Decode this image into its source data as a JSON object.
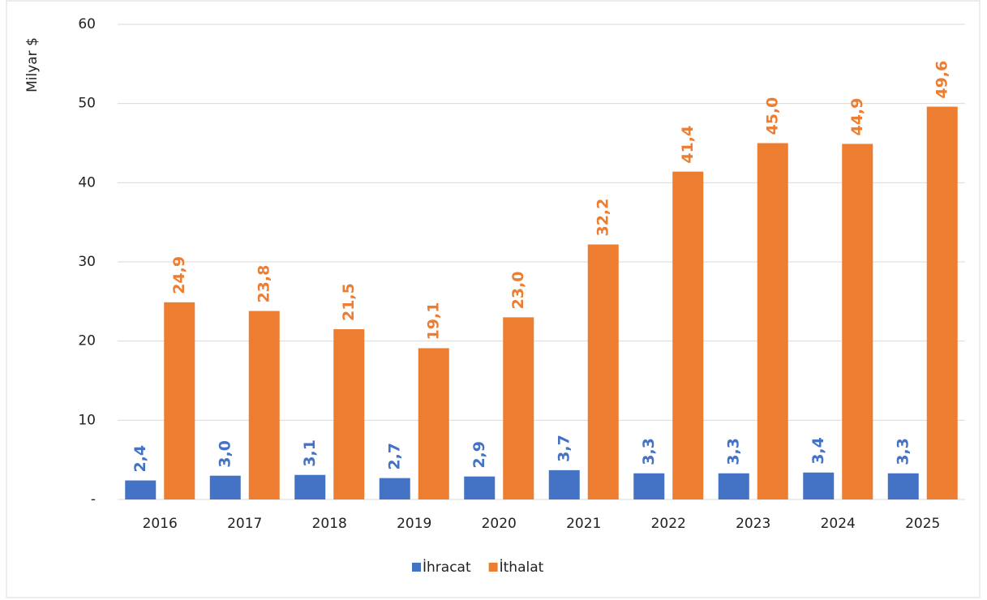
{
  "chart_data": {
    "type": "bar",
    "y_label": "Milyar $",
    "categories": [
      "2016",
      "2017",
      "2018",
      "2019",
      "2020",
      "2021",
      "2022",
      "2023",
      "2024",
      "2025"
    ],
    "series": [
      {
        "name": "İhracat",
        "color": "#4472c4",
        "values": [
          2.4,
          3.0,
          3.1,
          2.7,
          2.9,
          3.7,
          3.3,
          3.3,
          3.4,
          3.3
        ],
        "value_labels": [
          "2,4",
          "3,0",
          "3,1",
          "2,7",
          "2,9",
          "3,7",
          "3,3",
          "3,3",
          "3,4",
          "3,3"
        ]
      },
      {
        "name": "İthalat",
        "color": "#ed7d31",
        "values": [
          24.9,
          23.8,
          21.5,
          19.1,
          23.0,
          32.2,
          41.4,
          45.0,
          44.9,
          49.6
        ],
        "value_labels": [
          "24,9",
          "23,8",
          "21,5",
          "19,1",
          "23,0",
          "32,2",
          "41,4",
          "45,0",
          "44,9",
          "49,6"
        ]
      }
    ],
    "ylim": [
      0,
      60
    ],
    "yticks": [
      {
        "value": 0,
        "label": "-"
      },
      10,
      20,
      30,
      40,
      50,
      60
    ],
    "grid": true,
    "legend": "bottom"
  }
}
